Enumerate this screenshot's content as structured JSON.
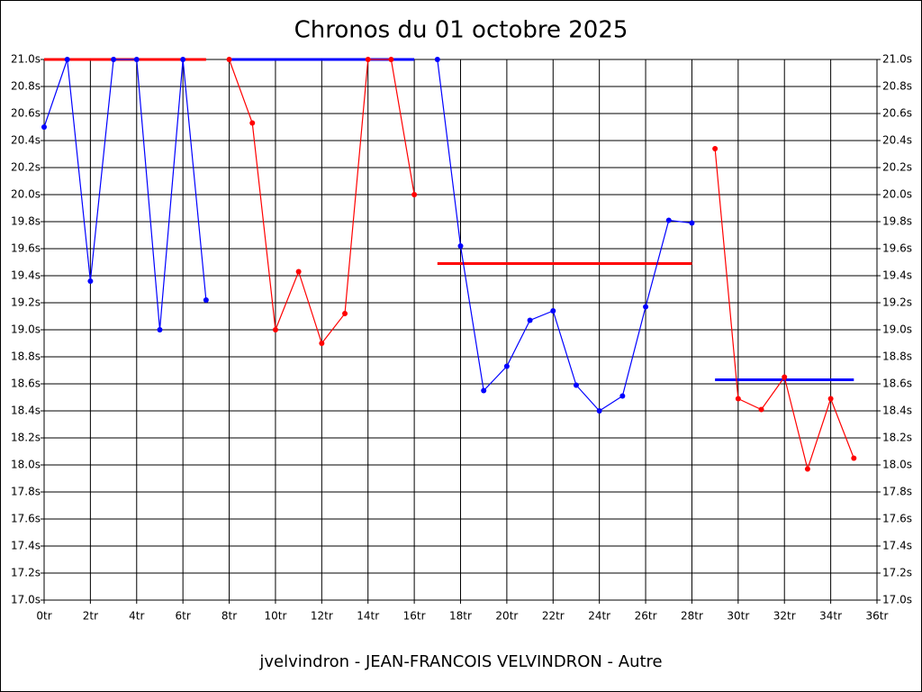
{
  "chart_data": {
    "type": "line",
    "title": "Chronos du 01 octobre 2025",
    "footer": "jvelvindron - JEAN-FRANCOIS VELVINDRON - Autre",
    "x": [
      0,
      1,
      2,
      3,
      4,
      5,
      6,
      7,
      8,
      9,
      10,
      11,
      12,
      13,
      14,
      15,
      16,
      17,
      18,
      19,
      20,
      21,
      22,
      23,
      24,
      25,
      26,
      27,
      28,
      29,
      30,
      31,
      32,
      33,
      34,
      35
    ],
    "series": [
      {
        "color": "#0000ff",
        "values": [
          20.5,
          21.0,
          19.36,
          21.0,
          21.0,
          19.0,
          21.0,
          19.22,
          null,
          null,
          null,
          null,
          null,
          null,
          null,
          null,
          null,
          21.0,
          19.62,
          18.55,
          18.73,
          19.07,
          19.14,
          18.59,
          18.4,
          18.51,
          19.17,
          19.81,
          19.79,
          null,
          null,
          null,
          null,
          null,
          null,
          null
        ]
      },
      {
        "color": "#ff0000",
        "values": [
          null,
          null,
          null,
          null,
          null,
          null,
          null,
          null,
          21.0,
          20.53,
          19.0,
          19.43,
          18.9,
          19.12,
          21.0,
          21.0,
          20.0,
          null,
          null,
          null,
          null,
          null,
          null,
          null,
          null,
          null,
          null,
          null,
          null,
          20.34,
          18.49,
          18.41,
          18.65,
          17.97,
          18.49,
          18.05
        ]
      }
    ],
    "averages": [
      {
        "color": "#ff0000",
        "x": [
          0,
          7
        ],
        "value": 21.0
      },
      {
        "color": "#0000ff",
        "x": [
          8,
          16
        ],
        "value": 21.0
      },
      {
        "color": "#ff0000",
        "x": [
          17,
          28
        ],
        "value": 19.49
      },
      {
        "color": "#0000ff",
        "x": [
          29,
          35
        ],
        "value": 18.63
      }
    ],
    "xlim": [
      0,
      36
    ],
    "xticks": [
      {
        "value": 0,
        "label": "0tr"
      },
      {
        "value": 2,
        "label": "2tr"
      },
      {
        "value": 4,
        "label": "4tr"
      },
      {
        "value": 6,
        "label": "6tr"
      },
      {
        "value": 8,
        "label": "8tr"
      },
      {
        "value": 10,
        "label": "10tr"
      },
      {
        "value": 12,
        "label": "12tr"
      },
      {
        "value": 14,
        "label": "14tr"
      },
      {
        "value": 16,
        "label": "16tr"
      },
      {
        "value": 18,
        "label": "18tr"
      },
      {
        "value": 20,
        "label": "20tr"
      },
      {
        "value": 22,
        "label": "22tr"
      },
      {
        "value": 24,
        "label": "24tr"
      },
      {
        "value": 26,
        "label": "26tr"
      },
      {
        "value": 28,
        "label": "28tr"
      },
      {
        "value": 30,
        "label": "30tr"
      },
      {
        "value": 32,
        "label": "32tr"
      },
      {
        "value": 34,
        "label": "34tr"
      },
      {
        "value": 36,
        "label": "36tr"
      }
    ],
    "ylim": [
      17.0,
      21.0
    ],
    "yticks": [
      {
        "value": 17.0,
        "label": "17.0s"
      },
      {
        "value": 17.2,
        "label": "17.2s"
      },
      {
        "value": 17.4,
        "label": "17.4s"
      },
      {
        "value": 17.6,
        "label": "17.6s"
      },
      {
        "value": 17.8,
        "label": "17.8s"
      },
      {
        "value": 18.0,
        "label": "18.0s"
      },
      {
        "value": 18.2,
        "label": "18.2s"
      },
      {
        "value": 18.4,
        "label": "18.4s"
      },
      {
        "value": 18.6,
        "label": "18.6s"
      },
      {
        "value": 18.8,
        "label": "18.8s"
      },
      {
        "value": 19.0,
        "label": "19.0s"
      },
      {
        "value": 19.2,
        "label": "19.2s"
      },
      {
        "value": 19.4,
        "label": "19.4s"
      },
      {
        "value": 19.6,
        "label": "19.6s"
      },
      {
        "value": 19.8,
        "label": "19.8s"
      },
      {
        "value": 20.0,
        "label": "20.0s"
      },
      {
        "value": 20.2,
        "label": "20.2s"
      },
      {
        "value": 20.4,
        "label": "20.4s"
      },
      {
        "value": 20.6,
        "label": "20.6s"
      },
      {
        "value": 20.8,
        "label": "20.8s"
      },
      {
        "value": 21.0,
        "label": "21.0s"
      }
    ],
    "grid": true
  }
}
